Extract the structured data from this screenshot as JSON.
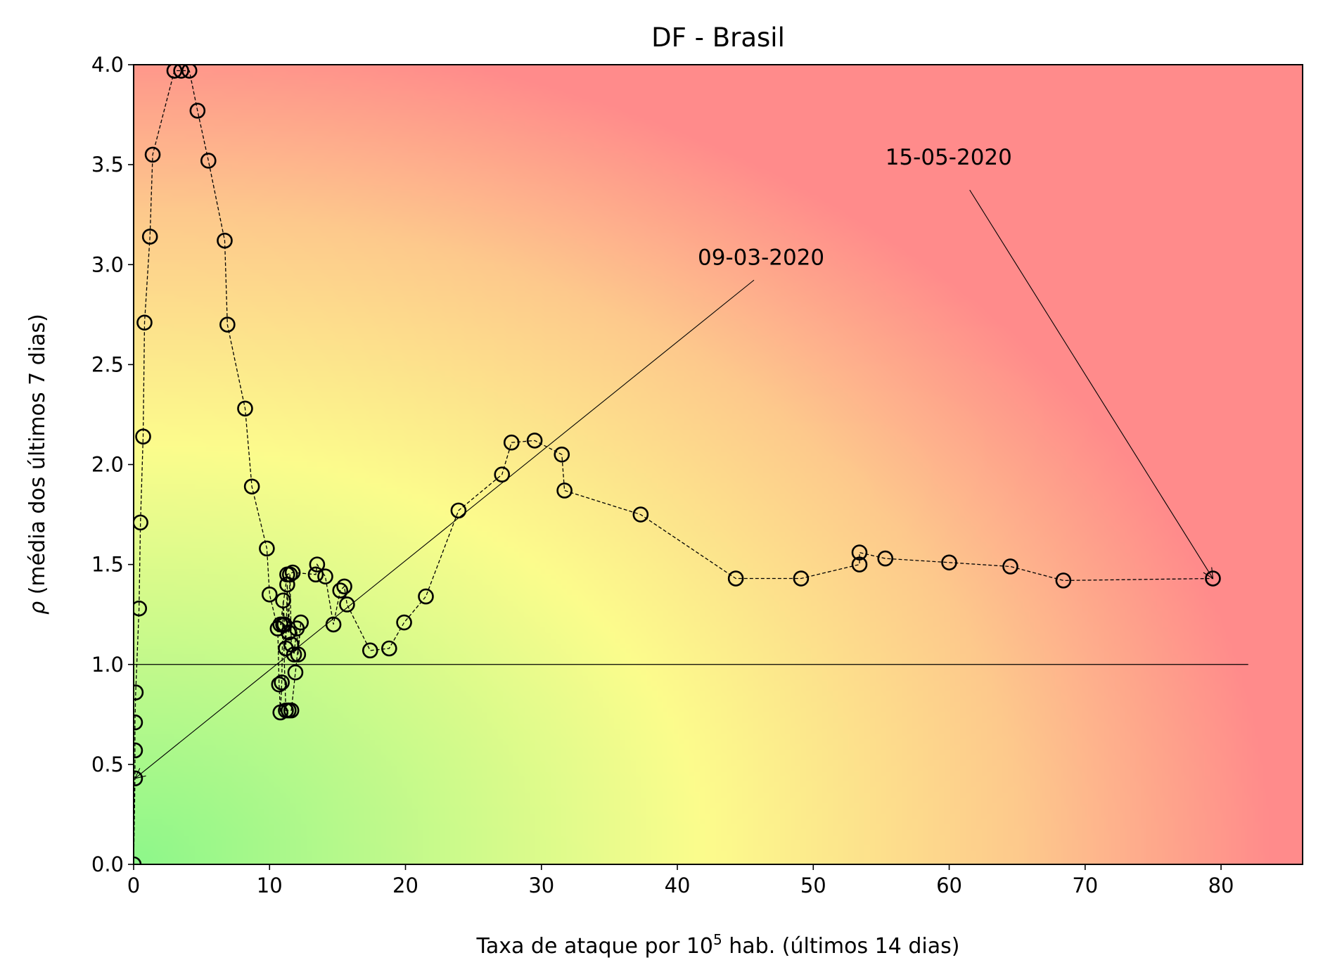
{
  "chart_data": {
    "type": "scatter",
    "title": "DF - Brasil",
    "xlabel_prefix": "Taxa de ataque por 10",
    "xlabel_sup": "5",
    "xlabel_suffix": " hab. (últimos 14 dias)",
    "ylabel_symbol": "ρ",
    "ylabel_text": " (média dos últimos 7 dias)",
    "xlim": [
      0,
      86
    ],
    "ylim": [
      0.0,
      4.0
    ],
    "x_ticks": [
      0,
      10,
      20,
      30,
      40,
      50,
      60,
      70,
      80
    ],
    "x_tick_labels": [
      "0",
      "10",
      "20",
      "30",
      "40",
      "50",
      "60",
      "70",
      "80"
    ],
    "y_ticks": [
      0.0,
      0.5,
      1.0,
      1.5,
      2.0,
      2.5,
      3.0,
      3.5,
      4.0
    ],
    "y_tick_labels": [
      "0.0",
      "0.5",
      "1.0",
      "1.5",
      "2.0",
      "2.5",
      "3.0",
      "3.5",
      "4.0"
    ],
    "grid": false,
    "background": "diagonal gradient: green (low x, low y) → yellow → red (high x, high y)",
    "colors": {
      "green": "#8ef78a",
      "yellow": "#fcfc8c",
      "orange": "#fdc98c",
      "red": "#ff8b8b",
      "marker_edge": "#000000"
    },
    "reference_line": {
      "y": 1.0,
      "x_range": [
        0,
        82
      ]
    },
    "series": [
      {
        "x": [
          0.0,
          0.1,
          0.1,
          0.1,
          0.15,
          0.4,
          0.5,
          0.7,
          0.8,
          1.2,
          1.4,
          3.0,
          3.5,
          4.1,
          4.7,
          5.5,
          6.7,
          6.9,
          8.2,
          8.7,
          9.8,
          10.0,
          10.6,
          10.7,
          10.8,
          10.9,
          11.0,
          11.1,
          11.2,
          11.3,
          11.4,
          11.5,
          11.6,
          11.8,
          12.0,
          12.1,
          12.3,
          11.9,
          11.6,
          11.4,
          11.2,
          11.0,
          10.8,
          11.3,
          11.7,
          13.4,
          13.5,
          14.1,
          14.7,
          15.2,
          15.5,
          15.7,
          17.4,
          18.8,
          19.9,
          21.5,
          23.9,
          27.1,
          27.8,
          29.5,
          31.5,
          31.7,
          37.3,
          44.3,
          49.1,
          53.4,
          53.4,
          55.3,
          60.0,
          64.5,
          68.4,
          79.4
        ],
        "y": [
          0.0,
          0.43,
          0.57,
          0.71,
          0.86,
          1.28,
          1.71,
          2.14,
          2.71,
          3.14,
          3.55,
          3.97,
          3.97,
          3.97,
          3.77,
          3.52,
          3.12,
          2.7,
          2.28,
          1.89,
          1.58,
          1.35,
          1.18,
          0.9,
          0.76,
          0.91,
          1.32,
          1.2,
          1.08,
          1.4,
          1.16,
          1.45,
          1.1,
          1.05,
          1.18,
          1.05,
          1.21,
          0.96,
          0.77,
          0.77,
          0.77,
          1.2,
          1.2,
          1.45,
          1.46,
          1.45,
          1.5,
          1.44,
          1.2,
          1.37,
          1.39,
          1.3,
          1.07,
          1.08,
          1.21,
          1.34,
          1.77,
          1.95,
          2.11,
          2.12,
          2.05,
          1.87,
          1.75,
          1.43,
          1.43,
          1.5,
          1.56,
          1.53,
          1.51,
          1.49,
          1.42,
          1.43
        ]
      }
    ],
    "annotations": [
      {
        "text": "09-03-2020",
        "point": [
          0.1,
          0.43
        ],
        "text_pos": [
          41.5,
          3.0
        ]
      },
      {
        "text": "15-05-2020",
        "point": [
          79.4,
          1.43
        ],
        "text_pos": [
          55.3,
          3.5
        ]
      }
    ]
  }
}
